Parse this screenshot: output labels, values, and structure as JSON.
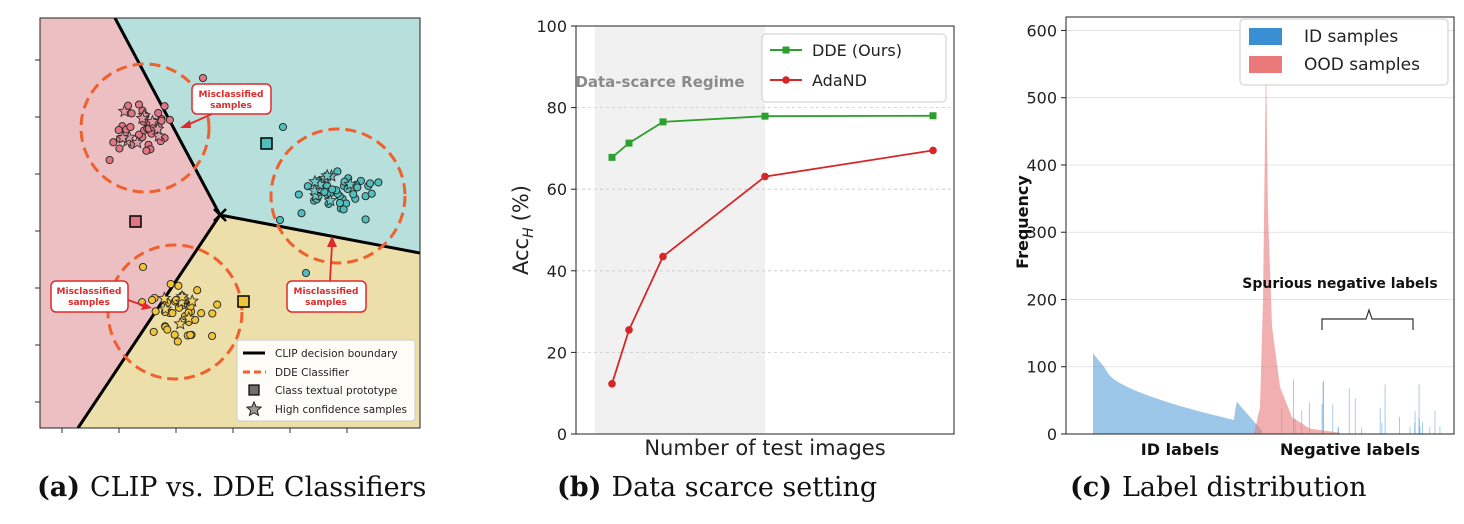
{
  "captions": [
    {
      "tag": "(a)",
      "text": "CLIP vs. DDE Classifiers"
    },
    {
      "tag": "(b)",
      "text": "Data scarce setting"
    },
    {
      "tag": "(c)",
      "text": "Label distribution"
    }
  ],
  "chart_data": [
    {
      "type": "scatter",
      "title": "",
      "regions": [
        {
          "name": "pink",
          "color": "#ecc0c3"
        },
        {
          "name": "teal",
          "color": "#b7e0dd"
        },
        {
          "name": "yellow",
          "color": "#ecdfaa"
        }
      ],
      "classes": [
        {
          "color": "#e07684",
          "star_color": "#e39aa4"
        },
        {
          "color": "#4fbfbd",
          "star_color": "#6dc9c7"
        },
        {
          "color": "#f0c437",
          "star_color": "#f3d36a"
        }
      ],
      "annotations": [
        {
          "text_lines": [
            "Misclassified",
            "samples"
          ]
        },
        {
          "text_lines": [
            "Misclassified",
            "samples"
          ]
        },
        {
          "text_lines": [
            "Misclassified",
            "samples"
          ]
        }
      ],
      "legend": {
        "placement": "lower-right",
        "entries": [
          "CLIP decision boundary",
          "DDE Classifier",
          "Class textual prototype",
          "High confidence samples"
        ]
      }
    },
    {
      "type": "line",
      "title": "",
      "xlabel": "Number of test images",
      "ylabel": "Acc",
      "ylabel_subscript": "H",
      "ylabel_unit": "(%)",
      "ylim": [
        0,
        100
      ],
      "yticks": [
        0,
        20,
        40,
        60,
        80,
        100
      ],
      "x": [
        1,
        2,
        4,
        10,
        20
      ],
      "shaded_region": {
        "label": "Data-scarce Regime",
        "x_from": 0.5,
        "x_to": 10
      },
      "series": [
        {
          "name": "DDE (Ours)",
          "color": "#2ca02c",
          "marker": "square",
          "values": [
            67.8,
            71.3,
            76.5,
            77.9,
            78.0
          ]
        },
        {
          "name": "AdaND",
          "color": "#d62728",
          "marker": "circle",
          "values": [
            12.3,
            25.5,
            43.5,
            63.1,
            69.5
          ]
        }
      ],
      "legend": {
        "placement": "top-right"
      },
      "grid": "y"
    },
    {
      "type": "histogram",
      "title": "",
      "xlabel": "",
      "ylabel": "Frequency",
      "ylim": [
        0,
        620
      ],
      "yticks": [
        0,
        100,
        200,
        300,
        400,
        500,
        600
      ],
      "grid": "y",
      "series": [
        {
          "name": "ID samples",
          "color": "#3a8fd4"
        },
        {
          "name": "OOD samples",
          "color": "#ea7a7a"
        }
      ],
      "regions": {
        "id_labels": "ID labels",
        "negative_labels": "Negative labels"
      },
      "annotation": "Spurious negative labels",
      "id_curve": {
        "start": 120,
        "knee": 95,
        "mid": 48,
        "end": 20
      },
      "ood_peak": 560,
      "legend": {
        "placement": "top-right"
      }
    }
  ]
}
